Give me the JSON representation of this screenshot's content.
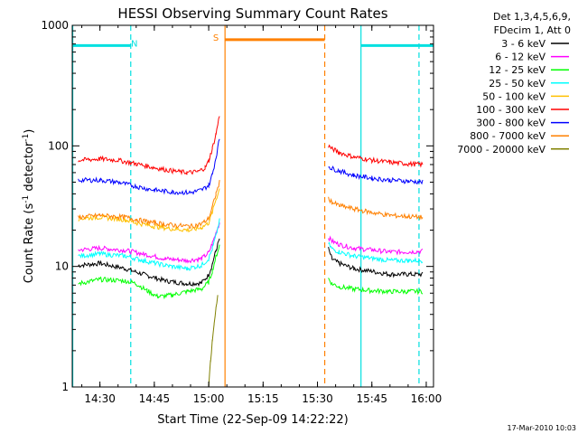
{
  "chart_data": {
    "type": "line",
    "title": "HESSI Observing Summary Count Rates",
    "xlabel": "Start Time (22-Sep-09 14:22:22)",
    "ylabel_prefix": "Count Rate (s",
    "ylabel_sup1": "-1",
    "ylabel_mid": " detector",
    "ylabel_sup2": "-1",
    "ylabel_suffix": ")",
    "y_scale": "log",
    "ylim": [
      1,
      1000
    ],
    "xlim": [
      "14:22:22",
      "16:02:00"
    ],
    "x_ticks": [
      "14:30",
      "14:45",
      "15:00",
      "15:15",
      "15:30",
      "15:45",
      "16:00"
    ],
    "y_ticks": [
      "1",
      "10",
      "100",
      "1000"
    ],
    "grid": false,
    "legend_header": [
      "Det 1,3,4,5,6,9,",
      "FDecim 1, Att 0"
    ],
    "series": [
      {
        "name": "3 - 6 keV",
        "color": "#000000",
        "seg1": [
          [
            "14:24",
            10.2
          ],
          [
            "14:30",
            10.6
          ],
          [
            "14:37",
            9.6
          ],
          [
            "14:42",
            8.6
          ],
          [
            "14:48",
            7.6
          ],
          [
            "14:54",
            7.2
          ],
          [
            "14:58",
            7.3
          ],
          [
            "15:00",
            8.5
          ],
          [
            "15:01",
            10.5
          ],
          [
            "15:02",
            13.5
          ],
          [
            "15:03",
            17
          ]
        ],
        "seg2": [
          [
            "15:33",
            14
          ],
          [
            "15:34",
            11.5
          ],
          [
            "15:36",
            10.6
          ],
          [
            "15:40",
            9.6
          ],
          [
            "15:45",
            9.1
          ],
          [
            "15:50",
            8.6
          ],
          [
            "15:55",
            8.6
          ],
          [
            "15:59",
            8.6
          ]
        ]
      },
      {
        "name": "6 - 12 keV",
        "color": "#ff00ff",
        "seg1": [
          [
            "14:24",
            13.7
          ],
          [
            "14:30",
            14.2
          ],
          [
            "14:37",
            13.6
          ],
          [
            "14:42",
            12.7
          ],
          [
            "14:48",
            11.6
          ],
          [
            "14:54",
            11.2
          ],
          [
            "14:58",
            11.6
          ],
          [
            "15:00",
            13
          ],
          [
            "15:01",
            15.5
          ],
          [
            "15:02",
            19
          ],
          [
            "15:03",
            23
          ]
        ],
        "seg2": [
          [
            "15:33",
            17.5
          ],
          [
            "15:34",
            16.2
          ],
          [
            "15:36",
            15.2
          ],
          [
            "15:40",
            14.2
          ],
          [
            "15:45",
            13.7
          ],
          [
            "15:50",
            13.2
          ],
          [
            "15:55",
            13.2
          ],
          [
            "15:59",
            13.4
          ]
        ]
      },
      {
        "name": "12 - 25 keV",
        "color": "#00ff00",
        "seg1": [
          [
            "14:24",
            7.2
          ],
          [
            "14:30",
            7.8
          ],
          [
            "14:37",
            7.6
          ],
          [
            "14:40",
            7.2
          ],
          [
            "14:43",
            6.3
          ],
          [
            "14:46",
            5.6
          ],
          [
            "14:50",
            5.8
          ],
          [
            "14:54",
            6.2
          ],
          [
            "14:58",
            6.5
          ],
          [
            "15:00",
            7.4
          ],
          [
            "15:01",
            9.2
          ],
          [
            "15:02",
            12
          ],
          [
            "15:03",
            15
          ]
        ],
        "seg2": [
          [
            "15:33",
            8
          ],
          [
            "15:34",
            7.2
          ],
          [
            "15:36",
            6.8
          ],
          [
            "15:40",
            6.5
          ],
          [
            "15:45",
            6.3
          ],
          [
            "15:50",
            6.2
          ],
          [
            "15:55",
            6.2
          ],
          [
            "15:59",
            6.2
          ]
        ]
      },
      {
        "name": "25 - 50 keV",
        "color": "#00ffff",
        "seg1": [
          [
            "14:24",
            12.2
          ],
          [
            "14:30",
            12.7
          ],
          [
            "14:37",
            12.2
          ],
          [
            "14:42",
            11.2
          ],
          [
            "14:48",
            10.2
          ],
          [
            "14:54",
            9.6
          ],
          [
            "14:58",
            10.2
          ],
          [
            "15:00",
            11.6
          ],
          [
            "15:01",
            14
          ],
          [
            "15:02",
            18
          ],
          [
            "15:03",
            24
          ]
        ],
        "seg2": [
          [
            "15:33",
            15.5
          ],
          [
            "15:34",
            14
          ],
          [
            "15:36",
            13.2
          ],
          [
            "15:40",
            12.2
          ],
          [
            "15:45",
            11.7
          ],
          [
            "15:50",
            11.2
          ],
          [
            "15:55",
            11.2
          ],
          [
            "15:59",
            11.2
          ]
        ]
      },
      {
        "name": "50 - 100 keV",
        "color": "#ffc000",
        "seg1": [
          [
            "14:24",
            25
          ],
          [
            "14:30",
            25.6
          ],
          [
            "14:37",
            24.4
          ],
          [
            "14:40",
            23
          ],
          [
            "14:45",
            21.5
          ],
          [
            "14:50",
            20.5
          ],
          [
            "14:55",
            20
          ],
          [
            "14:58",
            21
          ],
          [
            "15:00",
            23
          ],
          [
            "15:01",
            28
          ],
          [
            "15:02",
            36
          ],
          [
            "15:03",
            44
          ]
        ],
        "seg2": []
      },
      {
        "name": "100 - 300 keV",
        "color": "#ff0000",
        "seg1": [
          [
            "14:24",
            76
          ],
          [
            "14:27",
            77
          ],
          [
            "14:30",
            78
          ],
          [
            "14:35",
            76
          ],
          [
            "14:40",
            71
          ],
          [
            "14:45",
            66
          ],
          [
            "14:50",
            62
          ],
          [
            "14:54",
            60
          ],
          [
            "14:57",
            61
          ],
          [
            "14:59",
            66
          ],
          [
            "15:00",
            75
          ],
          [
            "15:01",
            95
          ],
          [
            "15:02",
            125
          ],
          [
            "15:03",
            180
          ]
        ],
        "seg2": [
          [
            "15:33",
            100
          ],
          [
            "15:34",
            95
          ],
          [
            "15:36",
            88
          ],
          [
            "15:40",
            81
          ],
          [
            "15:45",
            76
          ],
          [
            "15:50",
            73
          ],
          [
            "15:55",
            71
          ],
          [
            "15:59",
            70
          ]
        ]
      },
      {
        "name": "300 - 800 keV",
        "color": "#0000ff",
        "seg1": [
          [
            "14:24",
            52
          ],
          [
            "14:30",
            52
          ],
          [
            "14:35",
            50
          ],
          [
            "14:40",
            46
          ],
          [
            "14:45",
            43
          ],
          [
            "14:50",
            41.5
          ],
          [
            "14:55",
            41
          ],
          [
            "14:58",
            43
          ],
          [
            "15:00",
            47
          ],
          [
            "15:01",
            58
          ],
          [
            "15:02",
            80
          ],
          [
            "15:03",
            115
          ]
        ],
        "seg2": [
          [
            "15:33",
            68
          ],
          [
            "15:34",
            65
          ],
          [
            "15:36",
            62
          ],
          [
            "15:40",
            57
          ],
          [
            "15:45",
            54
          ],
          [
            "15:50",
            52
          ],
          [
            "15:55",
            51
          ],
          [
            "15:59",
            50
          ]
        ]
      },
      {
        "name": "800 - 7000 keV",
        "color": "#ff8000",
        "seg1": [
          [
            "14:24",
            25.6
          ],
          [
            "14:30",
            26.5
          ],
          [
            "14:37",
            25.6
          ],
          [
            "14:40",
            24.5
          ],
          [
            "14:45",
            23
          ],
          [
            "14:50",
            22
          ],
          [
            "14:55",
            21.5
          ],
          [
            "14:58",
            22.5
          ],
          [
            "15:00",
            25
          ],
          [
            "15:01",
            31
          ],
          [
            "15:02",
            40
          ],
          [
            "15:03",
            50
          ]
        ],
        "seg2": [
          [
            "15:33",
            37
          ],
          [
            "15:34",
            34
          ],
          [
            "15:36",
            32
          ],
          [
            "15:40",
            30
          ],
          [
            "15:45",
            28
          ],
          [
            "15:50",
            26.5
          ],
          [
            "15:55",
            26
          ],
          [
            "15:59",
            25.5
          ]
        ]
      },
      {
        "name": "7000 - 20000 keV",
        "color": "#808000",
        "seg1": [
          [
            "15:00",
            1
          ],
          [
            "15:00:30",
            1.6
          ],
          [
            "15:01",
            2.4
          ],
          [
            "15:01:30",
            3.3
          ],
          [
            "15:02",
            4.5
          ],
          [
            "15:02:30",
            6
          ]
        ],
        "seg2": []
      }
    ],
    "flag_lines": [
      {
        "kind": "night",
        "label": "N",
        "color": "#00e0e0",
        "level": 680,
        "from": "14:22:22",
        "to": "14:38:30",
        "label_at": "14:39:30"
      },
      {
        "kind": "saa",
        "label": "S",
        "color": "#ff8000",
        "level": 760,
        "from": "15:04:30",
        "to": "15:32:00",
        "label_at": "15:02:00"
      },
      {
        "kind": "night",
        "label": "",
        "color": "#00e0e0",
        "level": 680,
        "from": "15:42:00",
        "to": "16:02:00",
        "label_at": ""
      }
    ],
    "vlines": [
      {
        "t": "14:22:30",
        "color": "#00e0e0",
        "style": "solid"
      },
      {
        "t": "14:38:30",
        "color": "#00e0e0",
        "style": "dashed"
      },
      {
        "t": "15:04:30",
        "color": "#ff8000",
        "style": "solid"
      },
      {
        "t": "15:32:00",
        "color": "#ff8000",
        "style": "dashed"
      },
      {
        "t": "15:42:00",
        "color": "#00e0e0",
        "style": "solid"
      },
      {
        "t": "15:58:00",
        "color": "#00e0e0",
        "style": "dashed"
      }
    ],
    "timestamp": "17-Mar-2010 10:03"
  }
}
